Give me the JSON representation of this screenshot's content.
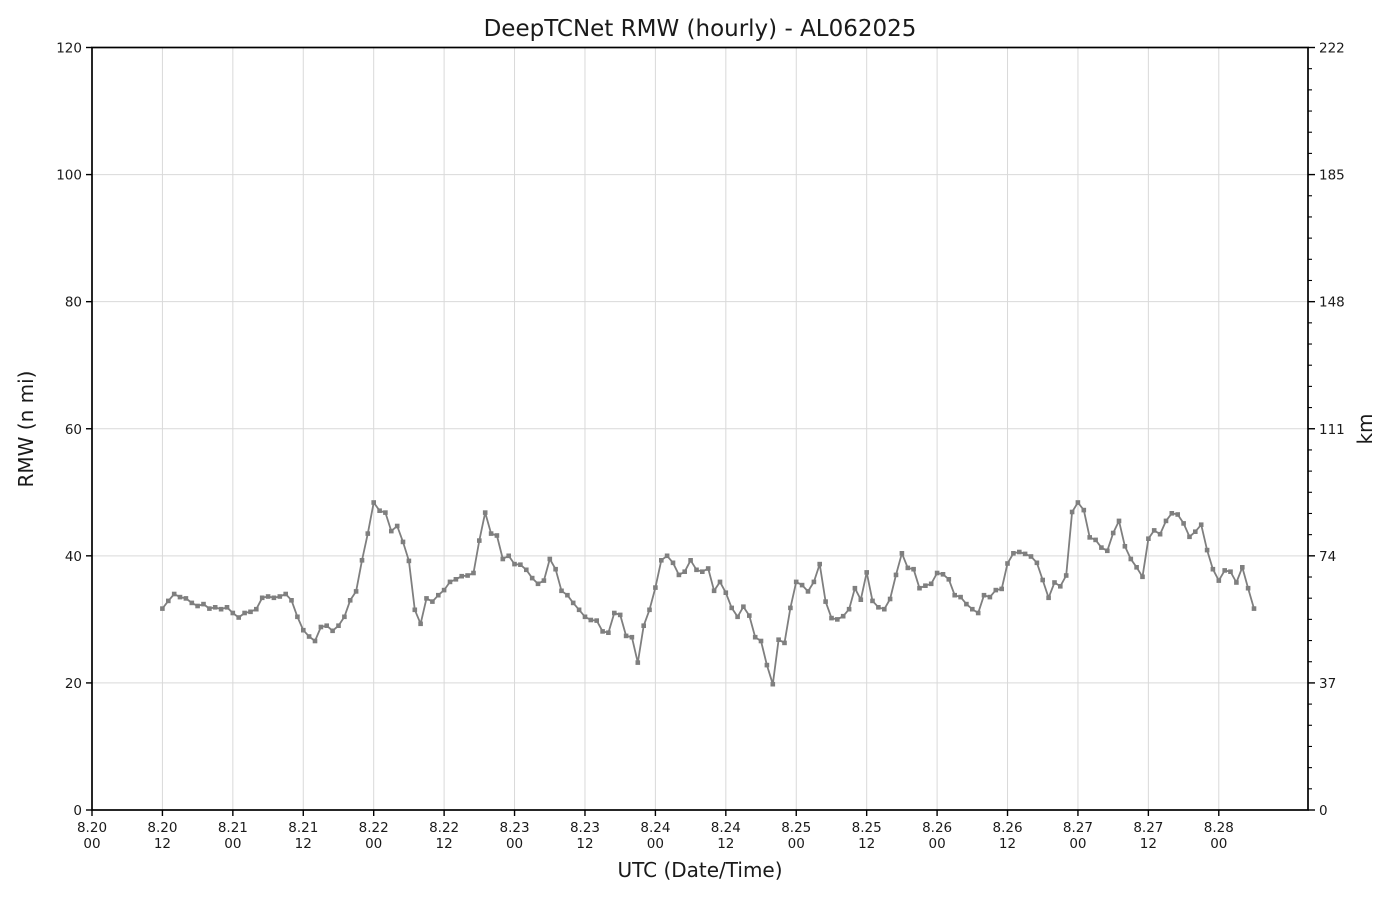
{
  "title": "DeepTCNet RMW (hourly) - AL062025",
  "colors": {
    "series": "#7f7f7f",
    "grid": "#d9d9d9",
    "spine": "#000000",
    "text": "#1a1a1a",
    "background": "#ffffff"
  },
  "chart_data": {
    "type": "line",
    "title": "DeepTCNet RMW (hourly) - AL062025",
    "xlabel": "UTC (Date/Time)",
    "ylabel_left": "RMW (n mi)",
    "ylabel_right": "km",
    "grid": true,
    "legend": "none",
    "x_axis": {
      "unit": "hours since 8.20 00:00 UTC",
      "range_hours": [
        0,
        207.2
      ],
      "tick_hours": [
        0,
        12,
        24,
        36,
        48,
        60,
        72,
        84,
        96,
        108,
        120,
        132,
        144,
        156,
        168,
        180,
        192
      ],
      "tick_labels": [
        [
          "8.20",
          "00"
        ],
        [
          "8.20",
          "12"
        ],
        [
          "8.21",
          "00"
        ],
        [
          "8.21",
          "12"
        ],
        [
          "8.22",
          "00"
        ],
        [
          "8.22",
          "12"
        ],
        [
          "8.23",
          "00"
        ],
        [
          "8.23",
          "12"
        ],
        [
          "8.24",
          "00"
        ],
        [
          "8.24",
          "12"
        ],
        [
          "8.25",
          "00"
        ],
        [
          "8.25",
          "12"
        ],
        [
          "8.26",
          "00"
        ],
        [
          "8.26",
          "12"
        ],
        [
          "8.27",
          "00"
        ],
        [
          "8.27",
          "12"
        ],
        [
          "8.28",
          "00"
        ]
      ]
    },
    "y_axis_left": {
      "label": "RMW (n mi)",
      "lim": [
        0,
        120
      ],
      "ticks": [
        0,
        20,
        40,
        60,
        80,
        100,
        120
      ]
    },
    "y_axis_right": {
      "label": "km",
      "lim": [
        0,
        222.24
      ],
      "ticks": [
        0,
        37,
        74,
        111,
        148,
        185,
        222
      ],
      "minor_per_interval": 5
    },
    "series": [
      {
        "name": "DeepTCNet RMW",
        "color": "#7f7f7f",
        "marker": "square",
        "start_label": "8.20 12:00 UTC",
        "start_hour": 12,
        "step_hours": 1,
        "values": [
          31.7,
          32.9,
          34.0,
          33.5,
          33.3,
          32.6,
          32.1,
          32.4,
          31.7,
          31.9,
          31.6,
          31.9,
          31.0,
          30.3,
          31.0,
          31.2,
          31.6,
          33.4,
          33.6,
          33.4,
          33.6,
          34.0,
          33.0,
          30.4,
          28.3,
          27.3,
          26.6,
          28.8,
          29.0,
          28.2,
          29.0,
          30.4,
          33.0,
          34.4,
          39.3,
          43.5,
          48.4,
          47.1,
          46.8,
          43.9,
          44.7,
          42.2,
          39.2,
          31.5,
          29.3,
          33.3,
          32.8,
          33.8,
          34.6,
          35.9,
          36.3,
          36.8,
          36.9,
          37.3,
          42.4,
          46.8,
          43.5,
          43.2,
          39.5,
          40.0,
          38.7,
          38.6,
          37.8,
          36.5,
          35.6,
          36.1,
          39.5,
          37.9,
          34.5,
          33.8,
          32.6,
          31.5,
          30.4,
          29.9,
          29.8,
          28.1,
          27.9,
          31.0,
          30.7,
          27.4,
          27.2,
          23.2,
          29.0,
          31.5,
          35.0,
          39.3,
          40.0,
          38.9,
          37.0,
          37.5,
          39.3,
          37.8,
          37.5,
          38.0,
          34.5,
          35.9,
          34.2,
          31.8,
          30.4,
          32.0,
          30.6,
          27.2,
          26.6,
          22.8,
          19.8,
          26.8,
          26.3,
          31.8,
          35.9,
          35.4,
          34.4,
          35.9,
          38.7,
          32.8,
          30.2,
          30.0,
          30.5,
          31.6,
          34.9,
          33.1,
          37.4,
          32.9,
          31.9,
          31.6,
          33.2,
          37.0,
          40.4,
          38.1,
          37.9,
          34.9,
          35.3,
          35.6,
          37.3,
          37.1,
          36.3,
          33.8,
          33.5,
          32.4,
          31.6,
          31.0,
          33.8,
          33.5,
          34.6,
          34.8,
          38.8,
          40.4,
          40.6,
          40.3,
          39.9,
          38.9,
          36.2,
          33.4,
          35.8,
          35.2,
          36.9,
          46.9,
          48.4,
          47.2,
          42.9,
          42.5,
          41.3,
          40.8,
          43.6,
          45.5,
          41.5,
          39.5,
          38.2,
          36.7,
          42.7,
          44.0,
          43.4,
          45.5,
          46.7,
          46.5,
          45.1,
          43.0,
          43.8,
          44.9,
          40.9,
          37.9,
          36.1,
          37.7,
          37.5,
          35.8,
          38.2,
          34.9,
          31.7
        ]
      }
    ]
  }
}
